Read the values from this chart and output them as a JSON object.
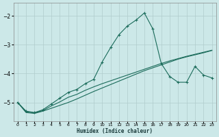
{
  "title": "",
  "xlabel": "Humidex (Indice chaleur)",
  "background_color": "#cce8e8",
  "grid_color": "#b0cccc",
  "line_color": "#1a6b5a",
  "xlim": [
    -0.5,
    23.5
  ],
  "ylim": [
    -5.65,
    -1.55
  ],
  "yticks": [
    -5,
    -4,
    -3,
    -2
  ],
  "xticks": [
    0,
    1,
    2,
    3,
    4,
    5,
    6,
    7,
    8,
    9,
    10,
    11,
    12,
    13,
    14,
    15,
    16,
    17,
    18,
    19,
    20,
    21,
    22,
    23
  ],
  "line1_x": [
    0,
    1,
    2,
    3,
    4,
    5,
    6,
    7,
    8,
    9,
    10,
    11,
    12,
    13,
    14,
    15,
    16,
    17,
    18,
    19,
    20,
    21,
    22,
    23
  ],
  "line1_y": [
    -5.0,
    -5.3,
    -5.35,
    -5.25,
    -5.05,
    -4.85,
    -4.65,
    -4.55,
    -4.35,
    -4.2,
    -3.6,
    -3.1,
    -2.65,
    -2.35,
    -2.15,
    -1.9,
    -2.45,
    -3.65,
    -4.1,
    -4.3,
    -4.3,
    -3.75,
    -4.05,
    -4.15
  ],
  "line2_x": [
    0,
    1,
    2,
    3,
    4,
    5,
    6,
    7,
    8,
    9,
    10,
    11,
    12,
    13,
    14,
    15,
    16,
    17,
    18,
    19,
    20,
    21,
    22,
    23
  ],
  "line2_y": [
    -5.0,
    -5.35,
    -5.38,
    -5.3,
    -5.2,
    -5.1,
    -5.0,
    -4.88,
    -4.75,
    -4.62,
    -4.5,
    -4.38,
    -4.26,
    -4.14,
    -4.02,
    -3.9,
    -3.8,
    -3.7,
    -3.6,
    -3.5,
    -3.42,
    -3.35,
    -3.28,
    -3.2
  ],
  "line3_x": [
    0,
    1,
    2,
    3,
    4,
    5,
    6,
    7,
    8,
    9,
    10,
    11,
    12,
    13,
    14,
    15,
    16,
    17,
    18,
    19,
    20,
    21,
    22,
    23
  ],
  "line3_y": [
    -5.0,
    -5.32,
    -5.36,
    -5.28,
    -5.12,
    -4.98,
    -4.82,
    -4.72,
    -4.58,
    -4.46,
    -4.35,
    -4.25,
    -4.15,
    -4.05,
    -3.95,
    -3.85,
    -3.75,
    -3.65,
    -3.56,
    -3.48,
    -3.4,
    -3.33,
    -3.26,
    -3.19
  ]
}
